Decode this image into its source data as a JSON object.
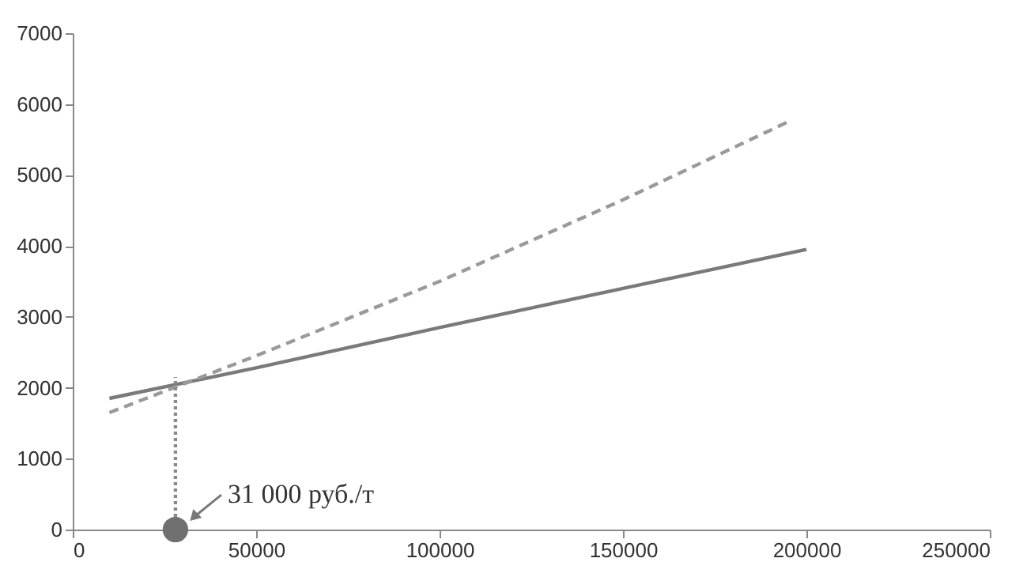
{
  "chart_data": {
    "type": "line",
    "xlim": [
      0,
      250000
    ],
    "xticks": [
      0,
      50000,
      100000,
      150000,
      200000,
      250000
    ],
    "ylim": [
      0,
      7000
    ],
    "yticks": [
      0,
      1000,
      2000,
      3000,
      4000,
      5000,
      6000,
      7000
    ],
    "grid": false,
    "marker": "none",
    "series": [
      {
        "color": "#7a7a7a",
        "line_style": "solid",
        "x": [
          10000,
          50000,
          100000,
          150000,
          200000
        ],
        "values": [
          1850,
          2280,
          2850,
          3400,
          3950
        ]
      },
      {
        "color": "#9a9a9a",
        "line_style": "dashed",
        "x": [
          10000,
          50000,
          100000,
          150000,
          195000
        ],
        "values": [
          1650,
          2450,
          3500,
          4650,
          5750
        ]
      },
      {
        "color": "#8a8a8a",
        "line_style": "dotted",
        "x": [
          28000,
          28000
        ],
        "values": [
          0,
          2150
        ]
      },
      {
        "type": "scatter",
        "color": "#707070",
        "marker": "circle",
        "x": [
          28000
        ],
        "values": [
          0
        ]
      }
    ],
    "annotations": [
      {
        "text": "31 000 руб./т",
        "x": 28000,
        "y": 0
      }
    ]
  }
}
